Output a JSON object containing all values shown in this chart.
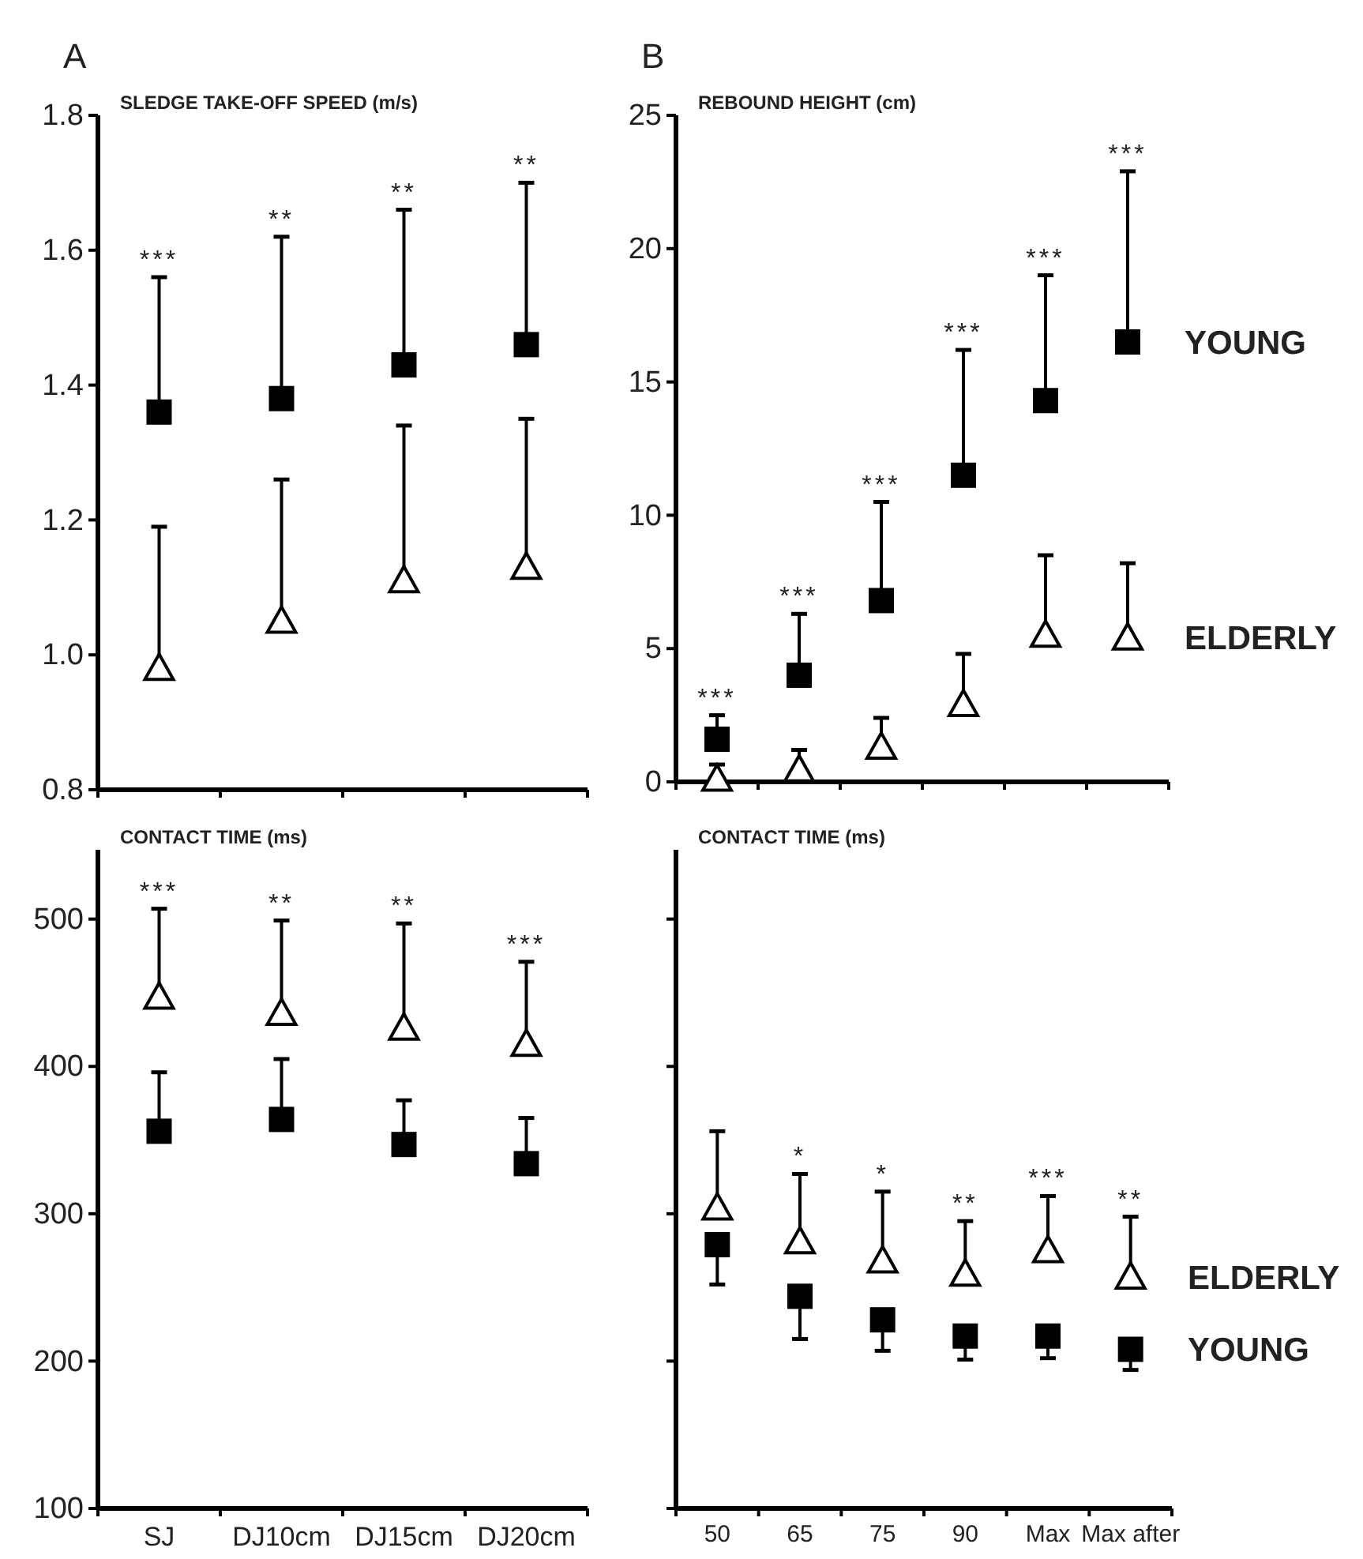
{
  "chart_data": [
    {
      "type": "scatter",
      "title": "A",
      "ylabel": "SLEDGE TAKE-OFF SPEED (m/s)",
      "categories": [
        "SJ",
        "DJ10cm",
        "DJ15cm",
        "DJ20cm"
      ],
      "ylim": [
        0.8,
        1.8
      ],
      "yticks": [
        {
          "value": 0.8,
          "label": "0.8"
        },
        {
          "value": 1.0,
          "label": "1.0"
        },
        {
          "value": 1.2,
          "label": "1.2"
        },
        {
          "value": 1.4,
          "label": "1.4"
        },
        {
          "value": 1.6,
          "label": "1.6"
        },
        {
          "value": 1.8,
          "label": "1.8"
        }
      ],
      "tick_labels": "y",
      "grid": false,
      "series": [
        {
          "color": "#000000",
          "marker": "square",
          "values": [
            1.36,
            1.38,
            1.43,
            1.46
          ],
          "errors": [
            [
              1.36,
              1.56
            ],
            [
              1.38,
              1.62
            ],
            [
              1.43,
              1.66
            ],
            [
              1.46,
              1.7
            ]
          ]
        },
        {
          "color": "#000000",
          "marker": "triangle",
          "values": [
            0.98,
            1.05,
            1.11,
            1.13
          ],
          "errors": [
            [
              0.98,
              1.19
            ],
            [
              1.05,
              1.26
            ],
            [
              1.11,
              1.34
            ],
            [
              1.13,
              1.35
            ]
          ]
        }
      ],
      "annotations": [
        {
          "text": "***",
          "x": "SJ",
          "y": 1.56
        },
        {
          "text": "**",
          "x": "DJ10cm",
          "y": 1.62
        },
        {
          "text": "**",
          "x": "DJ15cm",
          "y": 1.66
        },
        {
          "text": "**",
          "x": "DJ20cm",
          "y": 1.7
        }
      ]
    },
    {
      "type": "scatter",
      "title": "B",
      "ylabel": "REBOUND HEIGHT (cm)",
      "categories": [
        "50",
        "65",
        "75",
        "90",
        "Max",
        "Max after"
      ],
      "ylim": [
        0,
        25
      ],
      "yticks": [
        0,
        5,
        10,
        15,
        20,
        25
      ],
      "tick_labels": "y",
      "grid": false,
      "series": [
        {
          "name": "YOUNG",
          "color": "#000000",
          "marker": "square",
          "values": [
            1.6,
            4.0,
            6.8,
            11.5,
            14.3,
            16.5
          ],
          "errors": [
            [
              1.6,
              2.5
            ],
            [
              4.0,
              6.3
            ],
            [
              6.8,
              10.5
            ],
            [
              11.5,
              16.2
            ],
            [
              14.3,
              19.0
            ],
            [
              16.5,
              22.9
            ]
          ]
        },
        {
          "name": "ELDERLY",
          "color": "#000000",
          "marker": "triangle",
          "values": [
            0.1,
            0.45,
            1.3,
            2.9,
            5.5,
            5.4
          ],
          "errors": [
            [
              0.1,
              0.65
            ],
            [
              0.45,
              1.2
            ],
            [
              1.3,
              2.4
            ],
            [
              2.9,
              4.8
            ],
            [
              5.5,
              8.5
            ],
            [
              5.4,
              8.2
            ]
          ]
        }
      ],
      "annotations": [
        {
          "text": "***",
          "x": "50",
          "y": 2.5
        },
        {
          "text": "***",
          "x": "65",
          "y": 6.3
        },
        {
          "text": "***",
          "x": "75",
          "y": 10.5
        },
        {
          "text": "***",
          "x": "90",
          "y": 16.2
        },
        {
          "text": "***",
          "x": "Max",
          "y": 19.0
        },
        {
          "text": "***",
          "x": "Max after",
          "y": 22.9
        }
      ]
    },
    {
      "type": "scatter",
      "ylabel": "CONTACT TIME (ms)",
      "categories": [
        "SJ",
        "DJ10cm",
        "DJ15cm",
        "DJ20cm"
      ],
      "ylim": [
        100,
        547
      ],
      "yticks": [
        100,
        200,
        300,
        400,
        500
      ],
      "grid": false,
      "series": [
        {
          "color": "#000000",
          "marker": "triangle",
          "values": [
            447,
            436,
            426,
            415
          ],
          "errors": [
            [
              447,
              507
            ],
            [
              436,
              499
            ],
            [
              426,
              497
            ],
            [
              415,
              471
            ]
          ]
        },
        {
          "color": "#000000",
          "marker": "square",
          "values": [
            356,
            364,
            347,
            334
          ],
          "errors": [
            [
              356,
              396
            ],
            [
              364,
              405
            ],
            [
              347,
              377
            ],
            [
              334,
              365
            ]
          ]
        }
      ],
      "annotations": [
        {
          "text": "***",
          "x": "SJ",
          "y": 507
        },
        {
          "text": "**",
          "x": "DJ10cm",
          "y": 499
        },
        {
          "text": "**",
          "x": "DJ15cm",
          "y": 497
        },
        {
          "text": "***",
          "x": "DJ20cm",
          "y": 471
        }
      ]
    },
    {
      "type": "scatter",
      "ylabel": "CONTACT TIME (ms)",
      "categories": [
        "50",
        "65",
        "75",
        "90",
        "Max",
        "Max after"
      ],
      "ylim": [
        100,
        547
      ],
      "yticks": [
        {
          "value": 100,
          "label": null
        },
        {
          "value": 200,
          "label": null
        },
        {
          "value": 300,
          "label": null
        },
        {
          "value": 400,
          "label": null
        },
        {
          "value": 500,
          "label": null
        }
      ],
      "tick_labels": "x",
      "grid": false,
      "series": [
        {
          "name": "ELDERLY",
          "color": "#000000",
          "marker": "triangle",
          "values": [
            304,
            281,
            268,
            259,
            275,
            257
          ],
          "errors": [
            [
              304,
              356
            ],
            [
              281,
              327
            ],
            [
              268,
              315
            ],
            [
              259,
              295
            ],
            [
              275,
              312
            ],
            [
              257,
              298
            ]
          ]
        },
        {
          "name": "YOUNG",
          "color": "#000000",
          "marker": "square",
          "values": [
            279,
            244,
            228,
            217,
            217,
            208
          ],
          "errors": [
            [
              252,
              279
            ],
            [
              215,
              244
            ],
            [
              207,
              228
            ],
            [
              201,
              217
            ],
            [
              202,
              217
            ],
            [
              194,
              208
            ]
          ]
        }
      ],
      "annotations": [
        {
          "text": "*",
          "x": "65",
          "y": 327
        },
        {
          "text": "*",
          "x": "75",
          "y": 315
        },
        {
          "text": "**",
          "x": "90",
          "y": 295
        },
        {
          "text": "***",
          "x": "Max",
          "y": 312
        },
        {
          "text": "**",
          "x": "Max after",
          "y": 298
        }
      ]
    }
  ]
}
